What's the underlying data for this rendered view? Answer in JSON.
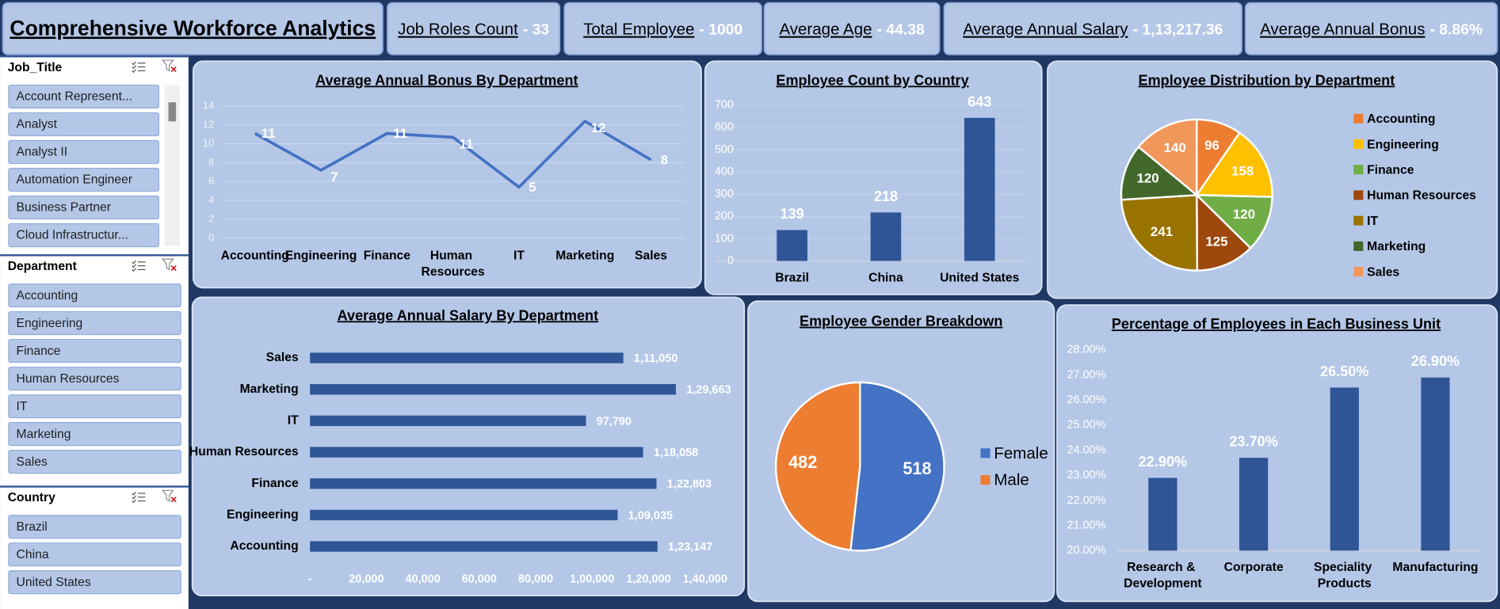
{
  "header": {
    "title": "Comprehensive Workforce Analytics",
    "kpis": [
      {
        "label": "Job Roles Count",
        "value": "- 33"
      },
      {
        "label": "Total Employee",
        "value": "- 1000"
      },
      {
        "label": "Average Age",
        "value": "- 44.38"
      },
      {
        "label": "Average Annual Salary",
        "value": "- 1,13,217.36"
      },
      {
        "label": "Average Annual Bonus",
        "value": "- 8.86%"
      }
    ]
  },
  "slicers": [
    {
      "title": "Job_Title",
      "items": [
        "Account Represent...",
        "Analyst",
        "Analyst II",
        "Automation Engineer",
        "Business Partner",
        "Cloud Infrastructur..."
      ]
    },
    {
      "title": "Department",
      "items": [
        "Accounting",
        "Engineering",
        "Finance",
        "Human Resources",
        "IT",
        "Marketing",
        "Sales"
      ]
    },
    {
      "title": "Country",
      "items": [
        "Brazil",
        "China",
        "United States"
      ]
    }
  ],
  "chart_data": [
    {
      "type": "line",
      "title": "Average Annual Bonus By Department",
      "categories": [
        "Accounting",
        "Engineering",
        "Finance",
        "Human Resources",
        "IT",
        "Marketing",
        "Sales"
      ],
      "values": [
        11.1,
        7.2,
        11.1,
        10.7,
        5.4,
        12.4,
        8.3
      ],
      "value_labels": [
        "11",
        "7",
        "11",
        "11",
        "5",
        "12",
        "8"
      ],
      "color": "#4472c4",
      "ylim": [
        0,
        14
      ],
      "yticks": [
        0,
        2,
        4,
        6,
        8,
        10,
        12,
        14
      ],
      "grid": true
    },
    {
      "type": "bar",
      "title": "Employee Count by Country",
      "categories": [
        "Brazil",
        "China",
        "United States"
      ],
      "values": [
        139,
        218,
        643
      ],
      "color": "#2f5597",
      "ylim": [
        0,
        700
      ],
      "yticks": [
        0,
        100,
        200,
        300,
        400,
        500,
        600,
        700
      ],
      "grid": true
    },
    {
      "type": "pie",
      "title": "Employee Distribution by Department",
      "categories": [
        "Accounting",
        "Engineering",
        "Finance",
        "Human Resources",
        "IT",
        "Marketing",
        "Sales"
      ],
      "values": [
        96,
        158,
        120,
        125,
        241,
        120,
        140
      ],
      "colors": [
        "#ed7d31",
        "#ffc000",
        "#70ad47",
        "#9e480e",
        "#997300",
        "#43682b",
        "#f1975a"
      ],
      "legend": "right"
    },
    {
      "type": "bar",
      "orientation": "horizontal",
      "title": "Average Annual Salary By Department",
      "categories": [
        "Accounting",
        "Engineering",
        "Finance",
        "Human Resources",
        "IT",
        "Marketing",
        "Sales"
      ],
      "values": [
        123147,
        109035,
        122803,
        118058,
        97790,
        129663,
        111050
      ],
      "value_labels": [
        "1,23,147",
        "1,09,035",
        "1,22,803",
        "1,18,058",
        "97,790",
        "1,29,663",
        "1,11,050"
      ],
      "color": "#2f5597",
      "xlim": [
        0,
        140000
      ],
      "xticks": [
        {
          "value": 0,
          "label": "-"
        },
        {
          "value": 20000,
          "label": "20,000"
        },
        {
          "value": 40000,
          "label": "40,000"
        },
        {
          "value": 60000,
          "label": "60,000"
        },
        {
          "value": 80000,
          "label": "80,000"
        },
        {
          "value": 100000,
          "label": "1,00,000"
        },
        {
          "value": 120000,
          "label": "1,20,000"
        },
        {
          "value": 140000,
          "label": "1,40,000"
        }
      ],
      "grid": false
    },
    {
      "type": "pie",
      "title": "Employee Gender Breakdown",
      "categories": [
        "Female",
        "Male"
      ],
      "values": [
        518,
        482
      ],
      "colors": [
        "#4472c4",
        "#ed7d31"
      ],
      "legend": "right"
    },
    {
      "type": "bar",
      "title": "Percentage of Employees in Each Business Unit",
      "categories": [
        "Research & Development",
        "Corporate",
        "Speciality Products",
        "Manufacturing"
      ],
      "values": [
        22.9,
        23.7,
        26.5,
        26.9
      ],
      "value_labels": [
        "22.90%",
        "23.70%",
        "26.50%",
        "26.90%"
      ],
      "color": "#2f5597",
      "ylim": [
        20,
        28
      ],
      "yticks": [
        {
          "value": 20,
          "label": "20.00%"
        },
        {
          "value": 21,
          "label": "21.00%"
        },
        {
          "value": 22,
          "label": "22.00%"
        },
        {
          "value": 23,
          "label": "23.00%"
        },
        {
          "value": 24,
          "label": "24.00%"
        },
        {
          "value": 25,
          "label": "25.00%"
        },
        {
          "value": 26,
          "label": "26.00%"
        },
        {
          "value": 27,
          "label": "27.00%"
        },
        {
          "value": 28,
          "label": "28.00%"
        }
      ],
      "grid": false
    }
  ]
}
